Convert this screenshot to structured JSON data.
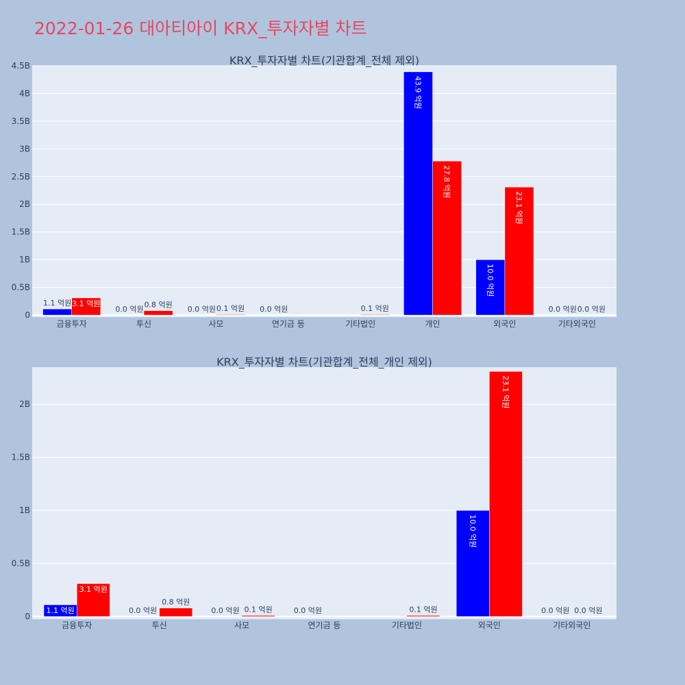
{
  "title": "2022-01-26 대아티아이 KRX_투자자별 차트",
  "colors": {
    "buy": "#0000ff",
    "sell": "#ff0000",
    "plot_bg": "#e5ecf6",
    "paper_bg": "#b0c4de",
    "title": "#e8475f"
  },
  "chart_data": [
    {
      "type": "bar",
      "title": "KRX_투자자별 차트(기관합계_전체 제외)",
      "categories": [
        "금융투자",
        "투신",
        "사모",
        "연기금 등",
        "기타법인",
        "개인",
        "외국인",
        "기타외국인"
      ],
      "ylim": [
        0,
        4500000000
      ],
      "yticks": [
        0,
        500000000,
        1000000000,
        1500000000,
        2000000000,
        2500000000,
        3000000000,
        3500000000,
        4000000000,
        4500000000
      ],
      "ytick_labels": [
        "0",
        "0.5B",
        "1B",
        "1.5B",
        "2B",
        "2.5B",
        "3B",
        "3.5B",
        "4B",
        "4.5B"
      ],
      "grid": true,
      "series": [
        {
          "color": "#0000ff",
          "values": [
            110000000,
            0,
            0,
            0,
            null,
            4390000000,
            1000000000,
            0
          ],
          "labels": [
            "1.1 억원",
            "0.0 억원",
            "0.0 억원",
            "0.0 억원",
            "",
            "43.9 억원",
            "10.0 억원",
            "0.0 억원"
          ]
        },
        {
          "color": "#ff0000",
          "values": [
            310000000,
            80000000,
            10000000,
            null,
            10000000,
            2780000000,
            2310000000,
            0
          ],
          "labels": [
            "3.1 억원",
            "0.8 억원",
            "0.1 억원",
            "",
            "0.1 억원",
            "27.8 억원",
            "23.1 억원",
            "0.0 억원"
          ]
        }
      ]
    },
    {
      "type": "bar",
      "title": "KRX_투자자별 차트(기관합계_전체_개인 제외)",
      "categories": [
        "금융투자",
        "투신",
        "사모",
        "연기금 등",
        "기타법인",
        "외국인",
        "기타외국인"
      ],
      "ylim": [
        0,
        2350000000
      ],
      "yticks": [
        0,
        500000000,
        1000000000,
        1500000000,
        2000000000
      ],
      "ytick_labels": [
        "0",
        "0.5B",
        "1B",
        "1.5B",
        "2B"
      ],
      "grid": true,
      "series": [
        {
          "color": "#0000ff",
          "values": [
            110000000,
            0,
            0,
            0,
            null,
            1000000000,
            0
          ],
          "labels": [
            "1.1 억원",
            "0.0 억원",
            "0.0 억원",
            "0.0 억원",
            "",
            "10.0 억원",
            "0.0 억원"
          ]
        },
        {
          "color": "#ff0000",
          "values": [
            310000000,
            80000000,
            10000000,
            null,
            10000000,
            2310000000,
            0
          ],
          "labels": [
            "3.1 억원",
            "0.8 억원",
            "0.1 억원",
            "",
            "0.1 억원",
            "23.1 억원",
            "0.0 억원"
          ]
        }
      ]
    }
  ]
}
